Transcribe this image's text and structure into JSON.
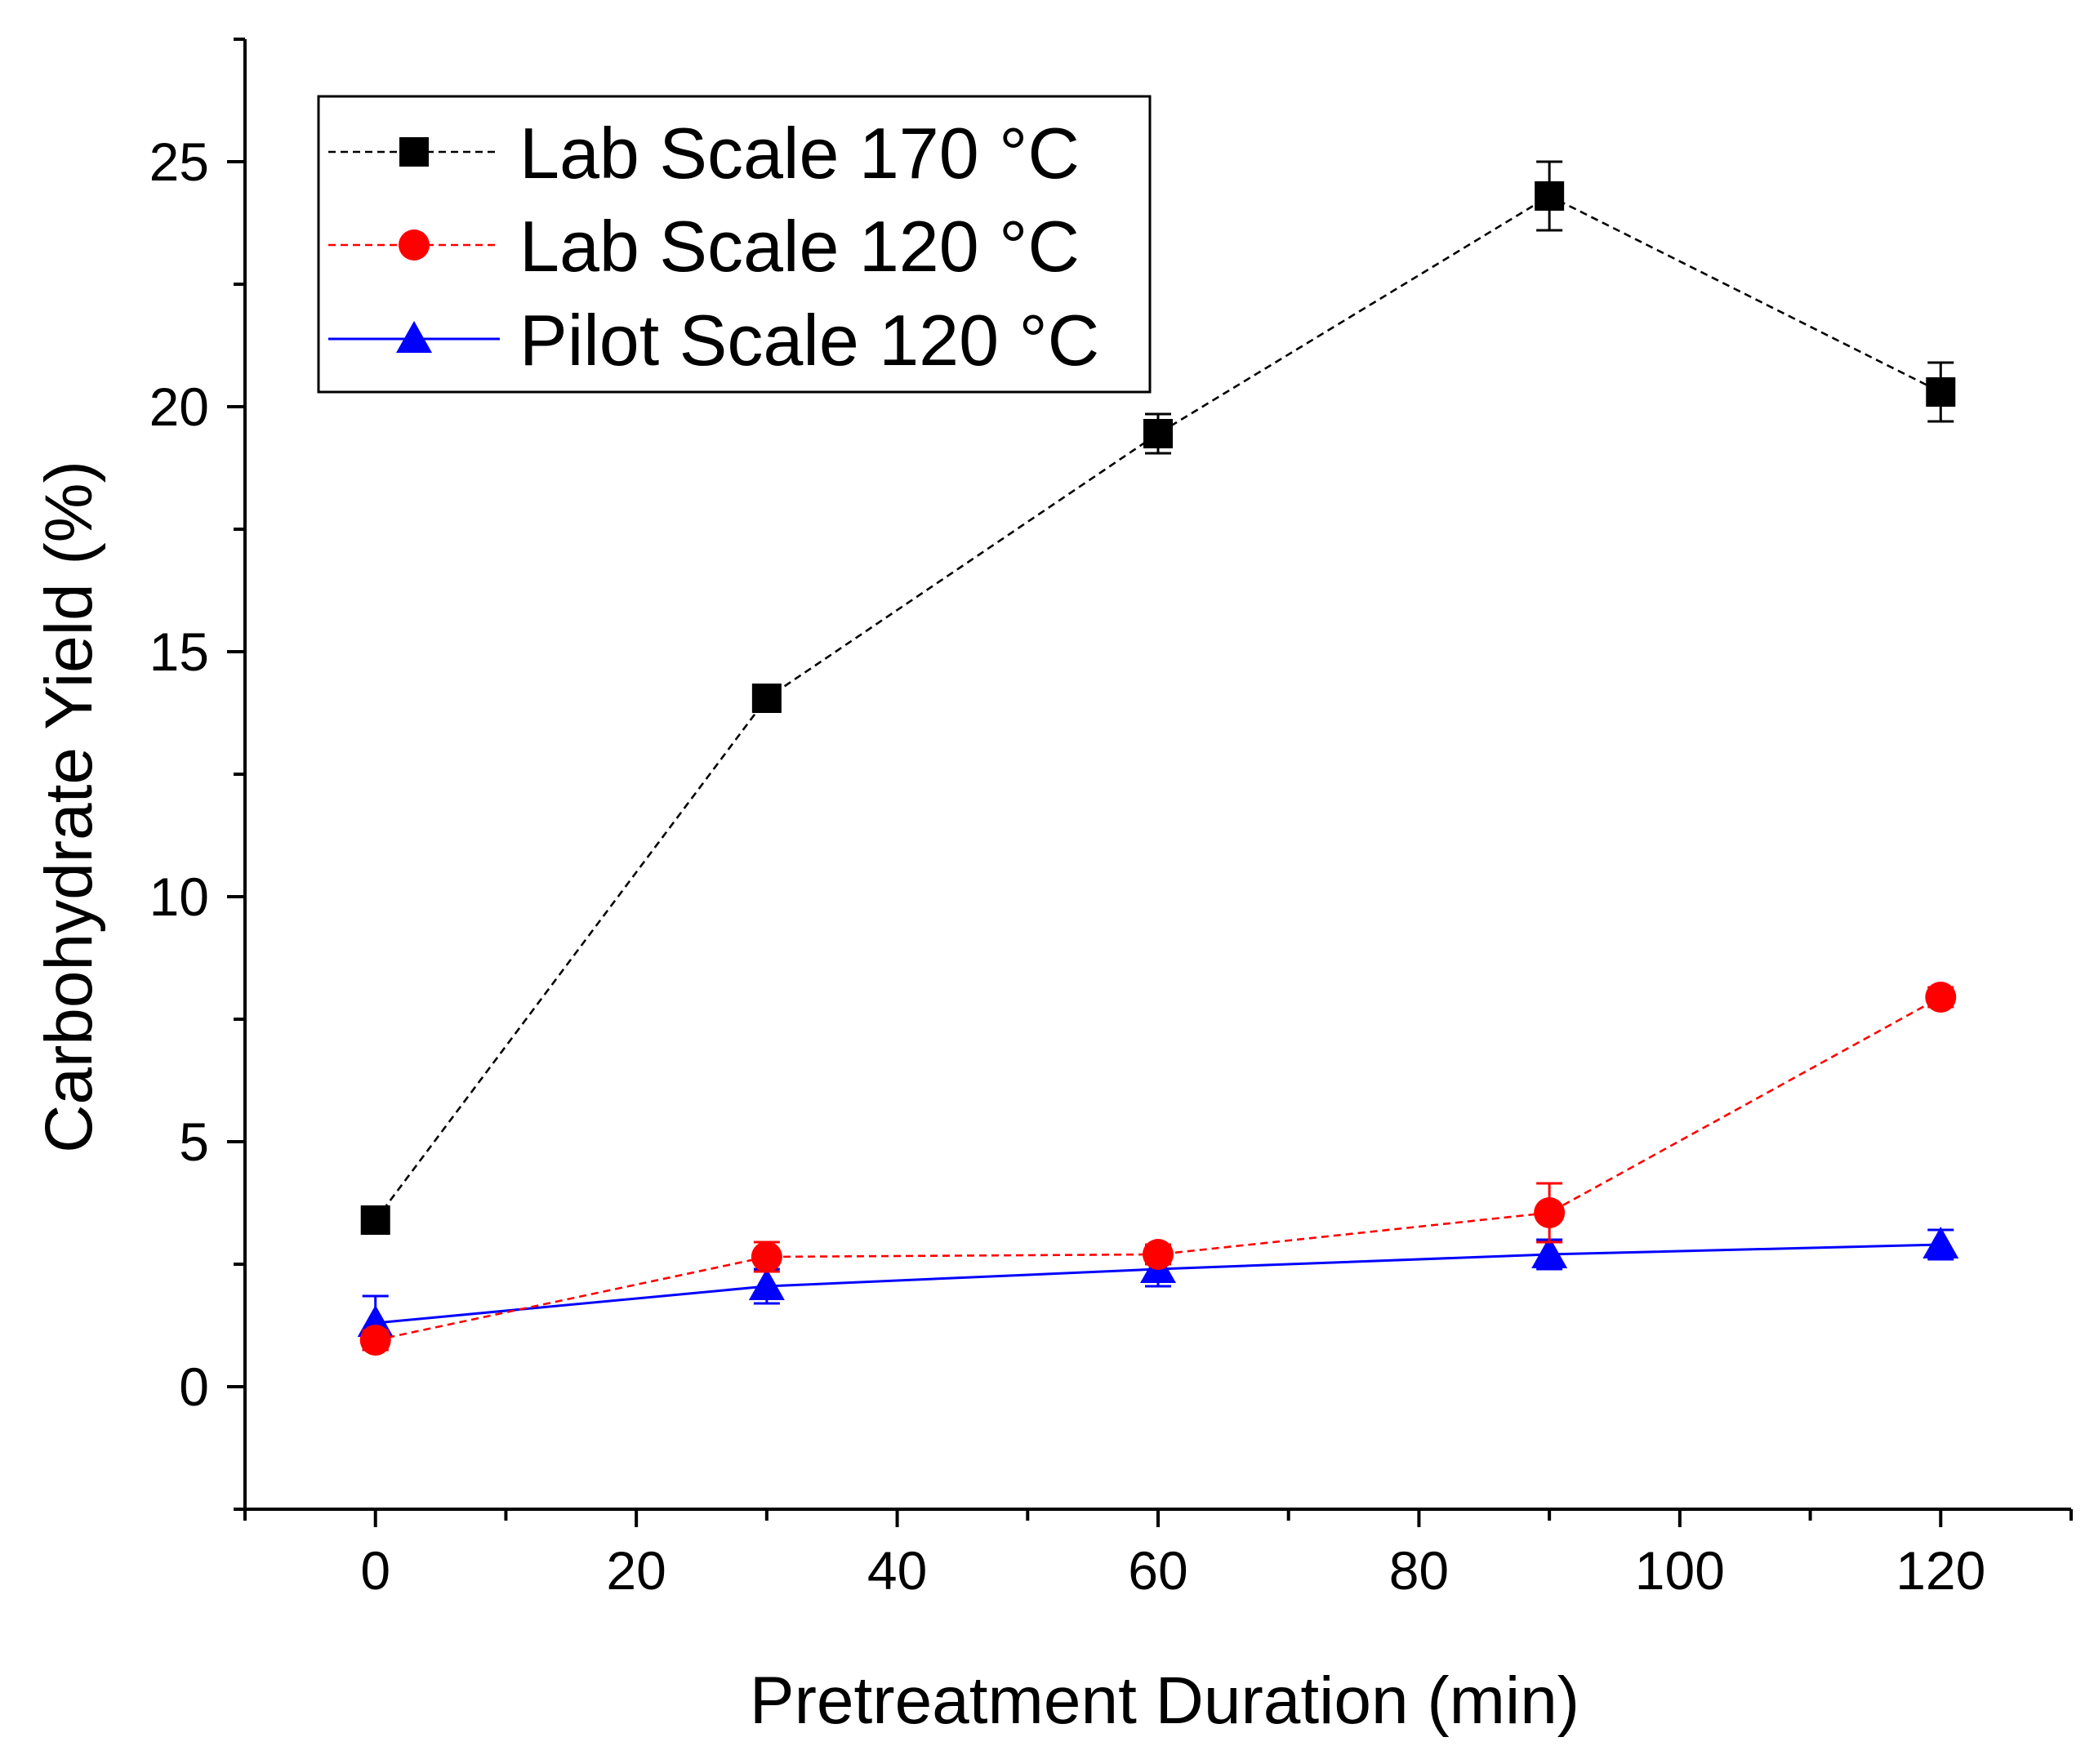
{
  "chart_data": {
    "type": "line",
    "title": "",
    "xlabel": "Pretreatment Duration (min)",
    "ylabel": "Carbohydrate Yield (%)",
    "xlim": [
      -10,
      130
    ],
    "ylim": [
      -2.5,
      27.5
    ],
    "xticks": [
      0,
      20,
      40,
      60,
      80,
      100,
      120
    ],
    "yticks": [
      0,
      5,
      10,
      15,
      20,
      25
    ],
    "xtick_labels": [
      "0",
      "20",
      "40",
      "60",
      "80",
      "100",
      "120"
    ],
    "ytick_labels": [
      "0",
      "5",
      "10",
      "15",
      "20",
      "25"
    ],
    "grid": false,
    "legend_position": "top-left",
    "series": [
      {
        "name": "Lab Scale 170 °C",
        "color": "#000000",
        "line_style": "dashed",
        "marker": "square",
        "x": [
          0,
          30,
          60,
          90,
          120
        ],
        "y": [
          3.4,
          14.05,
          19.45,
          24.3,
          20.3
        ],
        "err": [
          0,
          0,
          0.4,
          0.7,
          0.6
        ]
      },
      {
        "name": "Lab Scale 120 °C",
        "color": "#ff0000",
        "line_style": "dashed",
        "marker": "circle",
        "x": [
          0,
          30,
          60,
          90,
          120
        ],
        "y": [
          0.95,
          2.65,
          2.7,
          3.55,
          7.95
        ],
        "err": [
          0.2,
          0.3,
          0.2,
          0.6,
          0.2
        ]
      },
      {
        "name": "Pilot Scale 120 °C",
        "color": "#0000ff",
        "line_style": "solid",
        "marker": "triangle",
        "x": [
          0,
          30,
          60,
          90,
          120
        ],
        "y": [
          1.3,
          2.05,
          2.4,
          2.7,
          2.9
        ],
        "err": [
          0.55,
          0.35,
          0.35,
          0.3,
          0.3
        ]
      }
    ]
  }
}
